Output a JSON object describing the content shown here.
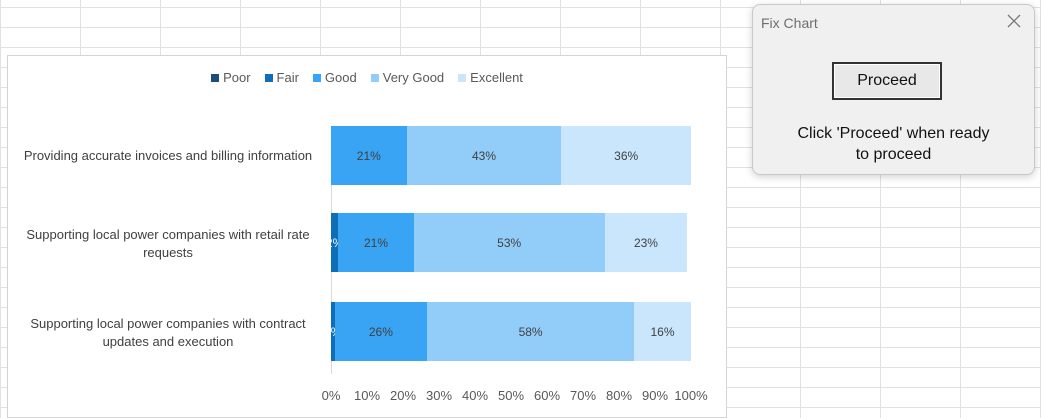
{
  "dialog": {
    "title": "Fix Chart",
    "button_label": "Proceed",
    "message_line1": "Click 'Proceed' when ready",
    "message_line2": "to proceed",
    "close_icon": "close-icon"
  },
  "chart_data": {
    "type": "bar",
    "orientation": "horizontal-stacked-100",
    "categories": [
      "Providing accurate invoices and billing information",
      "Supporting local power companies with retail rate requests",
      "Supporting local power companies with contract updates and execution"
    ],
    "series": [
      {
        "name": "Poor",
        "color": "#1b4f7a",
        "values": [
          0,
          0,
          0
        ],
        "labels": [
          "",
          "",
          ""
        ]
      },
      {
        "name": "Fair",
        "color": "#0e6fb8",
        "values": [
          0,
          2,
          1
        ],
        "labels": [
          "",
          "2%",
          "1%"
        ]
      },
      {
        "name": "Good",
        "color": "#38a4f3",
        "values": [
          21,
          21,
          26
        ],
        "labels": [
          "21%",
          "21%",
          "26%"
        ]
      },
      {
        "name": "Very Good",
        "color": "#92cdf9",
        "values": [
          43,
          53,
          58
        ],
        "labels": [
          "43%",
          "53%",
          "58%"
        ]
      },
      {
        "name": "Excellent",
        "color": "#c9e6fc",
        "values": [
          36,
          23,
          16
        ],
        "labels": [
          "36%",
          "23%",
          "16%"
        ]
      }
    ],
    "xlim": [
      0,
      100
    ],
    "ticks": [
      "0%",
      "10%",
      "20%",
      "30%",
      "40%",
      "50%",
      "60%",
      "70%",
      "80%",
      "90%",
      "100%"
    ],
    "legend_position": "top",
    "grid": false
  }
}
